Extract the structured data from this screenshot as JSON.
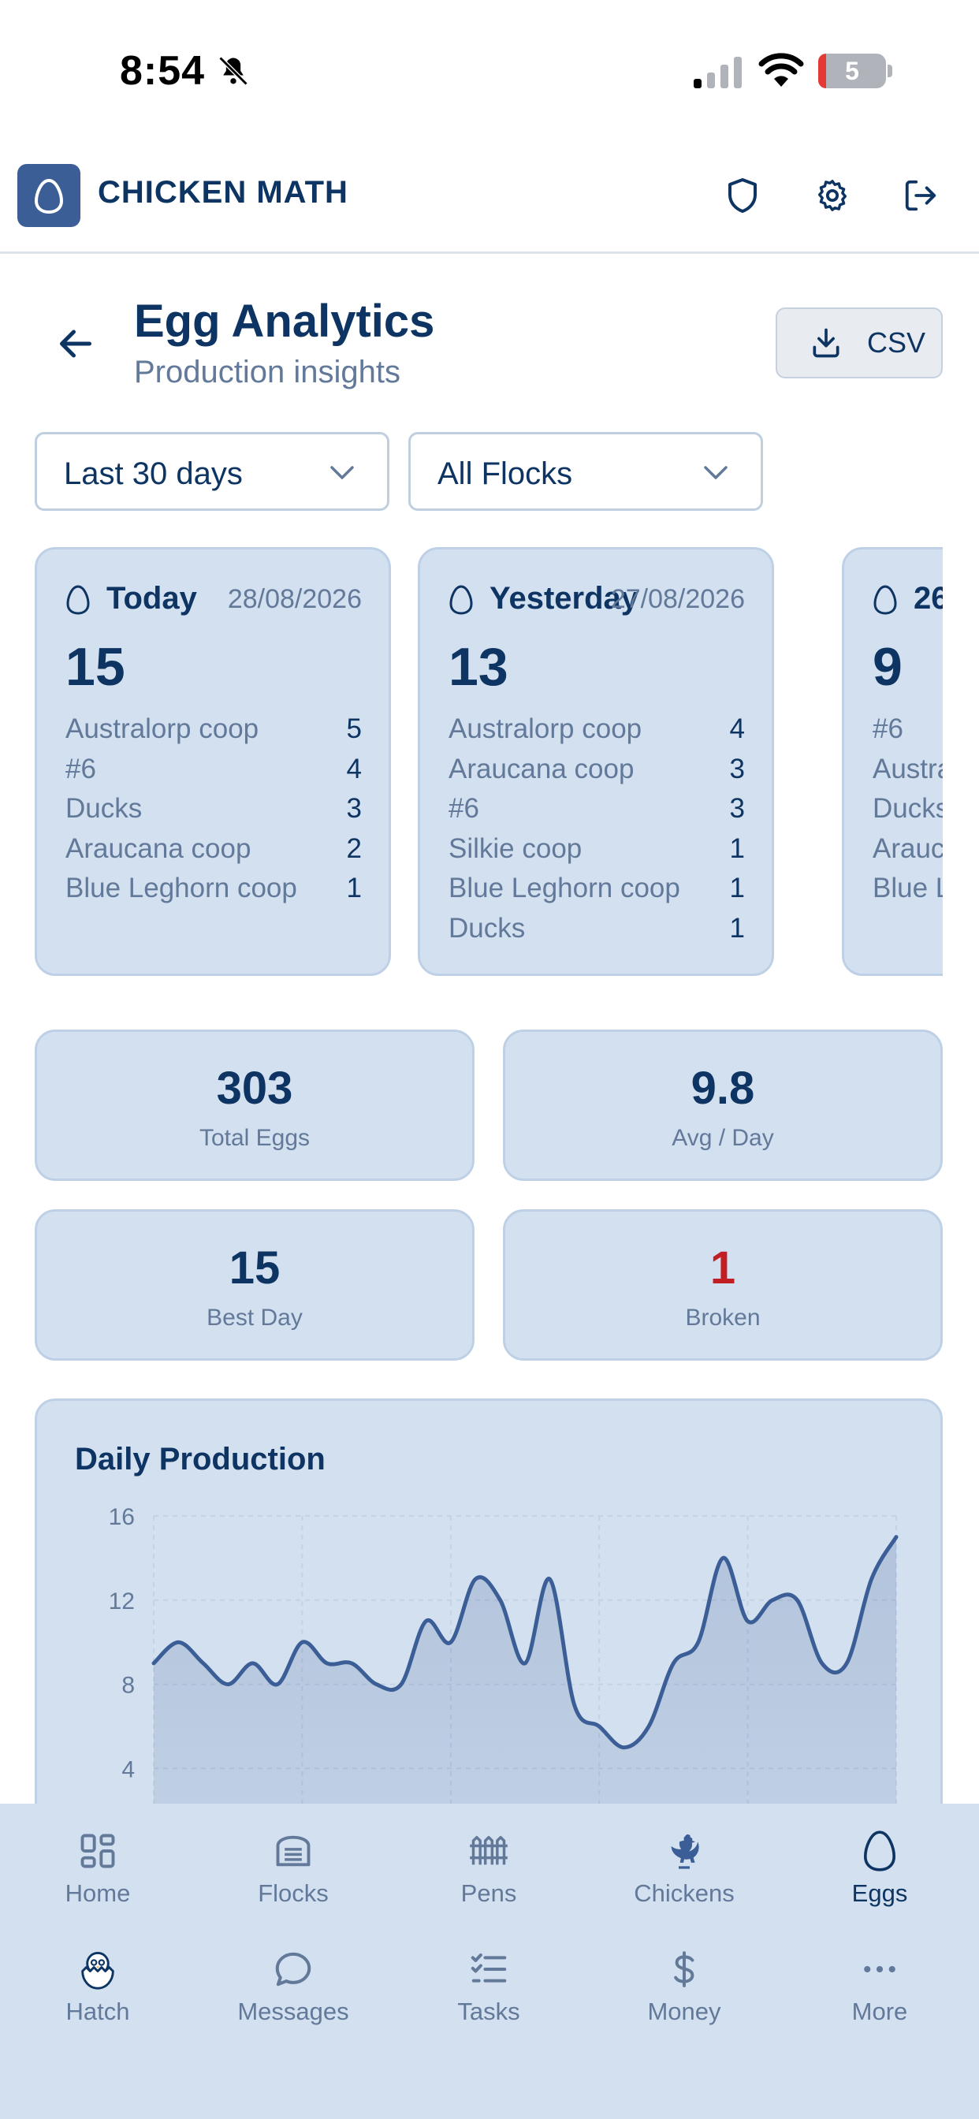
{
  "status_bar": {
    "time": "8:54",
    "battery": "5"
  },
  "header": {
    "app_title": "CHICKEN MATH",
    "icons": [
      "shield-icon",
      "gear-icon",
      "logout-icon"
    ]
  },
  "page": {
    "title": "Egg Analytics",
    "subtitle": "Production insights",
    "csv_label": "CSV"
  },
  "filters": {
    "range": "Last 30 days",
    "flock": "All Flocks"
  },
  "day_cards": [
    {
      "label": "Today",
      "date": "28/08/2026",
      "total": "15",
      "rows": [
        {
          "name": "Australorp coop",
          "count": "5"
        },
        {
          "name": "#6",
          "count": "4"
        },
        {
          "name": "Ducks",
          "count": "3"
        },
        {
          "name": "Araucana coop",
          "count": "2"
        },
        {
          "name": "Blue Leghorn coop",
          "count": "1"
        }
      ]
    },
    {
      "label": "Yesterday",
      "date": "27/08/2026",
      "total": "13",
      "rows": [
        {
          "name": "Australorp coop",
          "count": "4"
        },
        {
          "name": "Araucana coop",
          "count": "3"
        },
        {
          "name": "#6",
          "count": "3"
        },
        {
          "name": "Silkie coop",
          "count": "1"
        },
        {
          "name": "Blue Leghorn coop",
          "count": "1"
        },
        {
          "name": "Ducks",
          "count": "1"
        }
      ]
    },
    {
      "label": "26",
      "date": "",
      "total": "9",
      "rows": [
        {
          "name": "#6",
          "count": ""
        },
        {
          "name": "Austra",
          "count": ""
        },
        {
          "name": "Ducks",
          "count": ""
        },
        {
          "name": "Arauc",
          "count": ""
        },
        {
          "name": "Blue L",
          "count": ""
        }
      ]
    }
  ],
  "stats": [
    {
      "value": "303",
      "label": "Total Eggs"
    },
    {
      "value": "9.8",
      "label": "Avg / Day"
    },
    {
      "value": "15",
      "label": "Best Day"
    },
    {
      "value": "1",
      "label": "Broken"
    }
  ],
  "colors": {
    "primary": "#0d3462",
    "accent": "#3c5e97",
    "card": "#d3e0ef",
    "muted": "#62799a",
    "danger": "#c21f24"
  },
  "chart_data": {
    "type": "area",
    "title": "Daily Production",
    "y_ticks": [
      "16",
      "12",
      "8",
      "4"
    ],
    "ylim": [
      0,
      16
    ],
    "grid": true,
    "values": [
      9,
      10,
      9,
      8,
      9,
      8,
      10,
      9,
      9,
      8,
      8,
      11,
      10,
      13,
      12,
      9,
      13,
      7,
      6,
      5,
      6,
      9,
      10,
      14,
      11,
      12,
      12,
      9,
      9,
      13,
      15
    ]
  },
  "nav": [
    {
      "label": "Home",
      "icon": "grid-icon"
    },
    {
      "label": "Flocks",
      "icon": "flocks-icon"
    },
    {
      "label": "Pens",
      "icon": "fence-icon"
    },
    {
      "label": "Chickens",
      "icon": "rooster-icon"
    },
    {
      "label": "Eggs",
      "icon": "egg-icon",
      "active": true
    },
    {
      "label": "Hatch",
      "icon": "hatching-chick-icon"
    },
    {
      "label": "Messages",
      "icon": "chat-bubble-icon"
    },
    {
      "label": "Tasks",
      "icon": "checklist-icon"
    },
    {
      "label": "Money",
      "icon": "dollar-icon"
    },
    {
      "label": "More",
      "icon": "more-dots-icon"
    }
  ]
}
